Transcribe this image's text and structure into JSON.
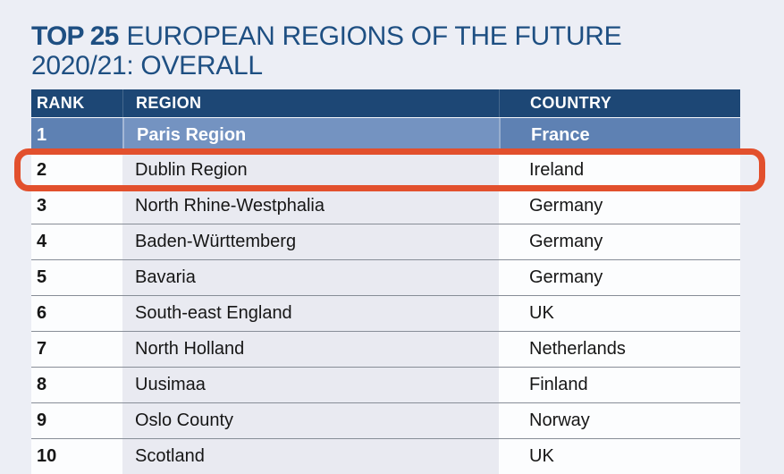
{
  "title": {
    "prefix": "TOP 25",
    "rest": "EUROPEAN REGIONS OF THE FUTURE",
    "line2": "2020/21: OVERALL"
  },
  "table": {
    "columns": [
      "RANK",
      "REGION",
      "COUNTRY"
    ],
    "rows": [
      {
        "rank": "1",
        "region": "Paris Region",
        "country": "France"
      },
      {
        "rank": "2",
        "region": "Dublin Region",
        "country": "Ireland"
      },
      {
        "rank": "3",
        "region": "North Rhine-Westphalia",
        "country": "Germany"
      },
      {
        "rank": "4",
        "region": "Baden-Württemberg",
        "country": "Germany"
      },
      {
        "rank": "5",
        "region": "Bavaria",
        "country": "Germany"
      },
      {
        "rank": "6",
        "region": "South-east England",
        "country": "UK"
      },
      {
        "rank": "7",
        "region": "North Holland",
        "country": "Netherlands"
      },
      {
        "rank": "8",
        "region": "Uusimaa",
        "country": "Finland"
      },
      {
        "rank": "9",
        "region": "Oslo County",
        "country": "Norway"
      },
      {
        "rank": "10",
        "region": "Scotland",
        "country": "UK"
      }
    ],
    "highlighted_rank": "2"
  },
  "colors": {
    "header_navy": "#1d4775",
    "top_row_blue": "#5e81b3",
    "top_row_region_blue": "#7493c1",
    "highlight_red": "#e2502d",
    "title_blue": "#1e4f82",
    "region_band": "#e9eaf1",
    "page_background": "#eceef5"
  }
}
